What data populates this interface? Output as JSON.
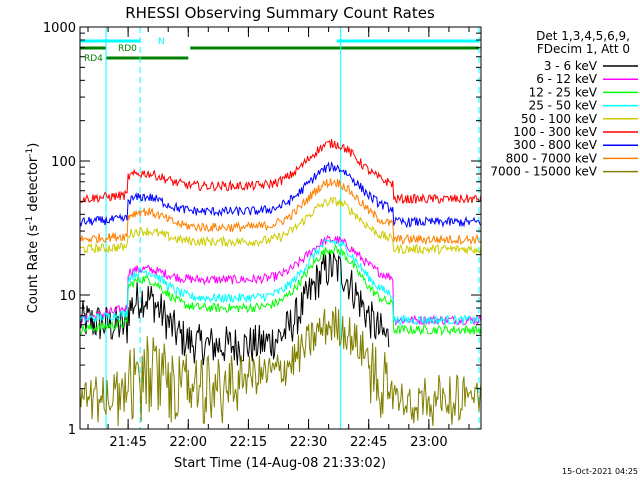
{
  "chart_data": {
    "type": "line",
    "title": "RHESSI Observing Summary Count Rates",
    "xlabel": "Start Time (14-Aug-08 21:33:02)",
    "ylabel_main": "Count Rate (s",
    "ylabel_sup1": "-1",
    "ylabel_mid": " detector",
    "ylabel_sup2": "-1",
    "ylabel_end": ")",
    "yscale": "log",
    "ylim": [
      1,
      1000
    ],
    "xlim_minutes": [
      0,
      100
    ],
    "x_tick_labels": [
      "21:45",
      "22:00",
      "22:15",
      "22:30",
      "22:45",
      "23:00"
    ],
    "x_ticks_minutes": [
      12,
      27,
      42,
      57,
      72,
      87
    ],
    "y_tick_labels": [
      "1",
      "10",
      "100",
      "1000"
    ],
    "y_ticks": [
      1,
      10,
      100,
      1000
    ],
    "legend": {
      "header1": "Det 1,3,4,5,6,9,",
      "header2": "FDecim 1, Att 0",
      "placement": "right"
    },
    "footer_date": "15-Oct-2021 04:25",
    "flags": {
      "N": "N",
      "RD0": "RD0",
      "RD4": "RD4"
    },
    "series": [
      {
        "name": "3 - 6 keV",
        "color": "#000000",
        "base": 6.5,
        "peak": 16,
        "valley": 4.2
      },
      {
        "name": "6 - 12 keV",
        "color": "#ff00ff",
        "base": 6.5,
        "peak": 26,
        "valley": 13
      },
      {
        "name": "12 - 25 keV",
        "color": "#00ff00",
        "base": 5.5,
        "peak": 22,
        "valley": 8
      },
      {
        "name": "25 - 50 keV",
        "color": "#00ffff",
        "base": 6.5,
        "peak": 25,
        "valley": 9.5
      },
      {
        "name": "50 - 100 keV",
        "color": "#cccc00",
        "base": 22,
        "peak": 50,
        "valley": 25
      },
      {
        "name": "100 - 300 keV",
        "color": "#ff0000",
        "base": 52,
        "peak": 135,
        "valley": 65
      },
      {
        "name": "300 - 800 keV",
        "color": "#0000ff",
        "base": 35,
        "peak": 90,
        "valley": 42
      },
      {
        "name": "800 - 7000 keV",
        "color": "#ff8000",
        "base": 26,
        "peak": 70,
        "valley": 32
      },
      {
        "name": "7000 - 15000 keV",
        "color": "#808000",
        "base": 1.8,
        "peak": 6,
        "valley": 2.5
      }
    ]
  }
}
